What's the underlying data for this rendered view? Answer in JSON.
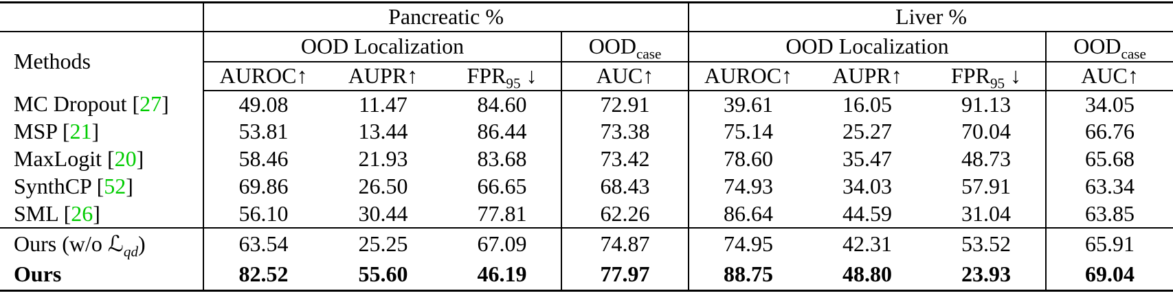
{
  "table": {
    "title_row": {
      "pancreatic": "Pancreatic %",
      "liver": "Liver %"
    },
    "group_row": {
      "methods_label": "Methods",
      "ood_localization": "OOD Localization",
      "ood_case": {
        "main": "OOD",
        "sub": "case"
      }
    },
    "metric_cols": [
      {
        "main": "AUROC",
        "sub": "",
        "arrow": "↑"
      },
      {
        "main": "AUPR",
        "sub": "",
        "arrow": "↑"
      },
      {
        "main": "FPR",
        "sub": "95",
        "arrow": " ↓"
      },
      {
        "main": "AUC",
        "sub": "",
        "arrow": "↑"
      },
      {
        "main": "AUROC",
        "sub": "",
        "arrow": "↑"
      },
      {
        "main": "AUPR",
        "sub": "",
        "arrow": "↑"
      },
      {
        "main": "FPR",
        "sub": "95",
        "arrow": " ↓"
      },
      {
        "main": "AUC",
        "sub": "",
        "arrow": "↑"
      }
    ],
    "rows": [
      {
        "method": "MC Dropout",
        "cite": "27",
        "bold": false,
        "separator_above": false,
        "values": [
          "49.08",
          "11.47",
          "84.60",
          "72.91",
          "39.61",
          "16.05",
          "91.13",
          "34.05"
        ]
      },
      {
        "method": "MSP",
        "cite": "21",
        "bold": false,
        "separator_above": false,
        "values": [
          "53.81",
          "13.44",
          "86.44",
          "73.38",
          "75.14",
          "25.27",
          "70.04",
          "66.76"
        ]
      },
      {
        "method": "MaxLogit",
        "cite": "20",
        "bold": false,
        "separator_above": false,
        "values": [
          "58.46",
          "21.93",
          "83.68",
          "73.42",
          "78.60",
          "35.47",
          "48.73",
          "65.68"
        ]
      },
      {
        "method": "SynthCP",
        "cite": "52",
        "bold": false,
        "separator_above": false,
        "values": [
          "69.86",
          "26.50",
          "66.65",
          "68.43",
          "74.93",
          "34.03",
          "57.91",
          "63.34"
        ]
      },
      {
        "method": "SML",
        "cite": "26",
        "bold": false,
        "separator_above": false,
        "values": [
          "56.10",
          "30.44",
          "77.81",
          "62.26",
          "86.64",
          "44.59",
          "31.04",
          "63.85"
        ]
      },
      {
        "method": "Ours (w/o ",
        "cite": null,
        "bold": false,
        "separator_above": true,
        "math_symbol": "ℒ",
        "math_sub": "qd",
        "method_end": ")",
        "values": [
          "63.54",
          "25.25",
          "67.09",
          "74.87",
          "74.95",
          "42.31",
          "53.52",
          "65.91"
        ]
      },
      {
        "method": "Ours",
        "cite": null,
        "bold": true,
        "separator_above": false,
        "values": [
          "82.52",
          "55.60",
          "46.19",
          "77.97",
          "88.75",
          "48.80",
          "23.93",
          "69.04"
        ]
      }
    ],
    "colors": {
      "cite_green": "#00CC00",
      "text": "#000000",
      "background": "#ffffff"
    }
  }
}
